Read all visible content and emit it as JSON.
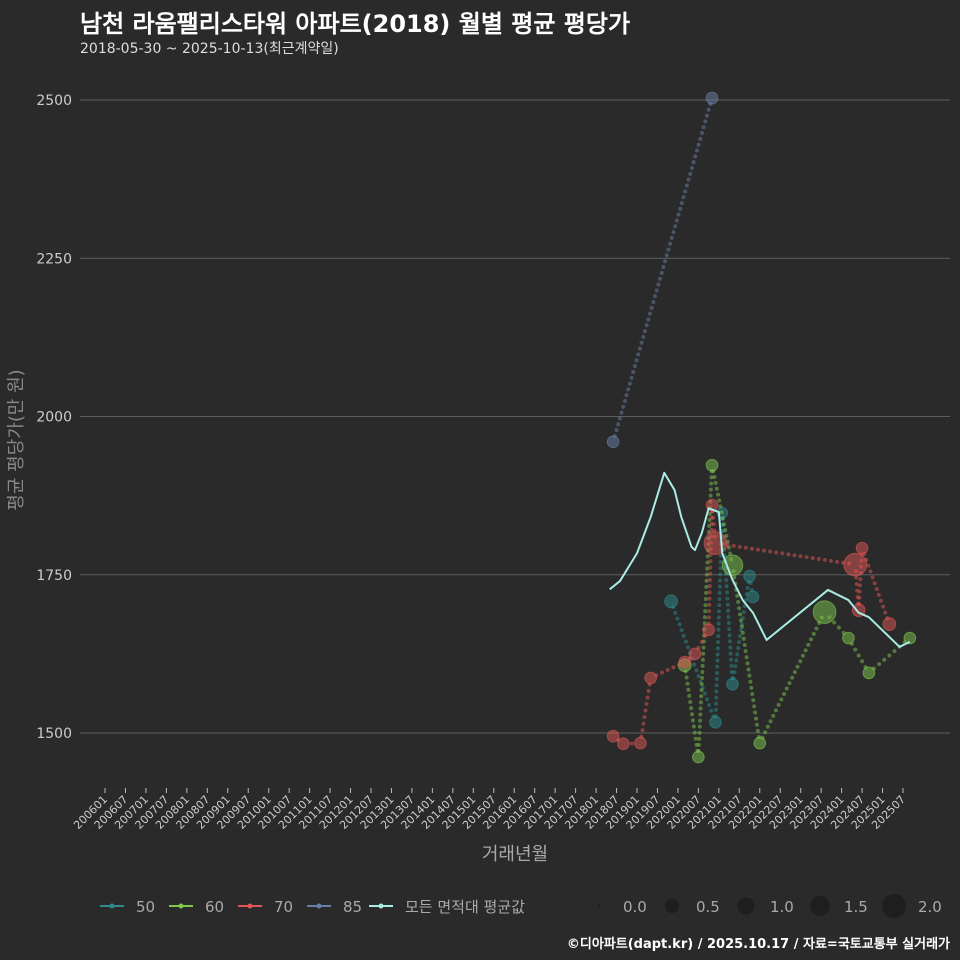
{
  "chart_data": {
    "type": "scatter",
    "title": "남천 라움팰리스타워 아파트(2018) 월별 평균 평당가",
    "subtitle": "2018-05-30 ~ 2025-10-13(최근계약일)",
    "xlabel": "거래년월",
    "ylabel": "평균 평당가(만 원)",
    "ylim": [
      1420,
      2560
    ],
    "yticks": [
      1500,
      1750,
      2000,
      2250,
      2500
    ],
    "xticks": [
      "200601",
      "200607",
      "200701",
      "200707",
      "200801",
      "200807",
      "200901",
      "200907",
      "201001",
      "201007",
      "201101",
      "201107",
      "201201",
      "201207",
      "201301",
      "201307",
      "201401",
      "201407",
      "201501",
      "201507",
      "201601",
      "201607",
      "201701",
      "201707",
      "201801",
      "201807",
      "201901",
      "201907",
      "202001",
      "202007",
      "202101",
      "202107",
      "202201",
      "202207",
      "202301",
      "202307",
      "202401",
      "202407",
      "202501",
      "202507"
    ],
    "grid": true,
    "legend_position": "bottom",
    "series": [
      {
        "name": "50",
        "color": "#2b8c8c",
        "points": [
          {
            "x": "2019-11",
            "y": 1708,
            "size": 0.8
          },
          {
            "x": "2020-12",
            "y": 1517,
            "size": 0.7
          },
          {
            "x": "2021-02",
            "y": 1848,
            "size": 0.6
          },
          {
            "x": "2021-05",
            "y": 1577,
            "size": 0.7
          },
          {
            "x": "2021-10",
            "y": 1748,
            "size": 0.7
          },
          {
            "x": "2021-11",
            "y": 1715,
            "size": 0.7
          }
        ]
      },
      {
        "name": "60",
        "color": "#7ec850",
        "points": [
          {
            "x": "2020-03",
            "y": 1607,
            "size": 0.8
          },
          {
            "x": "2020-07",
            "y": 1462,
            "size": 0.7
          },
          {
            "x": "2020-11",
            "y": 1923,
            "size": 0.7
          },
          {
            "x": "2021-05",
            "y": 1765,
            "size": 1.5
          },
          {
            "x": "2022-01",
            "y": 1484,
            "size": 0.7
          },
          {
            "x": "2023-08",
            "y": 1691,
            "size": 1.7
          },
          {
            "x": "2024-03",
            "y": 1650,
            "size": 0.7
          },
          {
            "x": "2024-09",
            "y": 1595,
            "size": 0.7
          },
          {
            "x": "2025-09",
            "y": 1650,
            "size": 0.7
          }
        ]
      },
      {
        "name": "70",
        "color": "#e05555",
        "points": [
          {
            "x": "2018-06",
            "y": 1495,
            "size": 0.7
          },
          {
            "x": "2018-09",
            "y": 1483,
            "size": 0.7
          },
          {
            "x": "2019-02",
            "y": 1484,
            "size": 0.7
          },
          {
            "x": "2019-05",
            "y": 1587,
            "size": 0.7
          },
          {
            "x": "2020-03",
            "y": 1612,
            "size": 0.7
          },
          {
            "x": "2020-06",
            "y": 1625,
            "size": 0.7
          },
          {
            "x": "2020-10",
            "y": 1663,
            "size": 0.7
          },
          {
            "x": "2020-11",
            "y": 1860,
            "size": 0.7
          },
          {
            "x": "2020-12",
            "y": 1800,
            "size": 1.7
          },
          {
            "x": "2024-05",
            "y": 1766,
            "size": 1.7
          },
          {
            "x": "2024-06",
            "y": 1694,
            "size": 0.8
          },
          {
            "x": "2024-07",
            "y": 1792,
            "size": 0.7
          },
          {
            "x": "2025-03",
            "y": 1672,
            "size": 0.8
          }
        ]
      },
      {
        "name": "85",
        "color": "#6a7fa8",
        "points": [
          {
            "x": "2018-06",
            "y": 1960,
            "size": 0.7
          },
          {
            "x": "2020-11",
            "y": 2503,
            "size": 0.7
          }
        ]
      }
    ],
    "average": {
      "name": "모든 면적대 평균값",
      "color": "#a8ece4",
      "points": [
        {
          "x": "2018-05",
          "y": 1727
        },
        {
          "x": "2018-08",
          "y": 1740
        },
        {
          "x": "2019-01",
          "y": 1784
        },
        {
          "x": "2019-05",
          "y": 1841
        },
        {
          "x": "2019-09",
          "y": 1911
        },
        {
          "x": "2019-12",
          "y": 1884
        },
        {
          "x": "2020-02",
          "y": 1841
        },
        {
          "x": "2020-05",
          "y": 1794
        },
        {
          "x": "2020-06",
          "y": 1789
        },
        {
          "x": "2020-08",
          "y": 1816
        },
        {
          "x": "2020-10",
          "y": 1855
        },
        {
          "x": "2021-01",
          "y": 1849
        },
        {
          "x": "2021-02",
          "y": 1784
        },
        {
          "x": "2021-05",
          "y": 1742
        },
        {
          "x": "2021-08",
          "y": 1710
        },
        {
          "x": "2021-11",
          "y": 1690
        },
        {
          "x": "2022-03",
          "y": 1647
        },
        {
          "x": "2023-09",
          "y": 1726
        },
        {
          "x": "2024-03",
          "y": 1710
        },
        {
          "x": "2024-06",
          "y": 1690
        },
        {
          "x": "2024-09",
          "y": 1683
        },
        {
          "x": "2025-06",
          "y": 1636
        },
        {
          "x": "2025-09",
          "y": 1644
        }
      ]
    },
    "size_legend": [
      "0.0",
      "0.5",
      "1.0",
      "1.5",
      "2.0"
    ]
  },
  "caption": "©디아파트(dapt.kr) / 2025.10.17 / 자료=국토교통부 실거래가"
}
